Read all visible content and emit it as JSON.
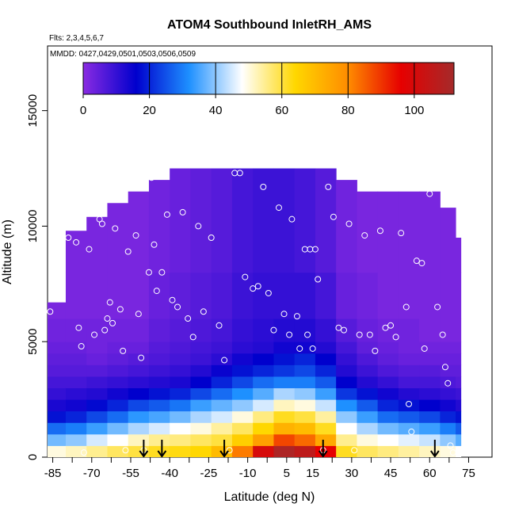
{
  "chart_data": {
    "type": "heatmap",
    "title": "ATOM4 Southbound InletRH_AMS",
    "flights_label": "Flts: 2,3,4,5,6,7",
    "dates_label": "MMDD: 0427,0429,0501,0503,0506,0509",
    "xlabel": "Latitude (deg N)",
    "ylabel": "Altitude (m)",
    "xlim": [
      -87,
      84
    ],
    "ylim": [
      0,
      17800
    ],
    "x_ticks": [
      -85,
      -70,
      -55,
      -40,
      -25,
      -10,
      5,
      15,
      30,
      45,
      60,
      75
    ],
    "x_tick_labels": [
      "-85",
      "-70",
      "-55",
      "-40",
      "-25",
      "-10",
      "5",
      "15",
      "30",
      "45",
      "60",
      "75"
    ],
    "y_ticks": [
      0,
      5000,
      10000,
      15000
    ],
    "y_tick_labels": [
      "0",
      "5000",
      "10000",
      "15000"
    ],
    "colorbar": {
      "range": [
        0,
        112
      ],
      "ticks": [
        0,
        20,
        40,
        60,
        80,
        100
      ],
      "tick_labels": [
        "0",
        "20",
        "40",
        "60",
        "80",
        "100"
      ],
      "colors": [
        "#8a2be2",
        "#0000cd",
        "#1e90ff",
        "#ffffff",
        "#ffd700",
        "#ff8c00",
        "#e60000",
        "#a52a2a"
      ]
    },
    "heatmap_columns": [
      {
        "x": -87,
        "top": 6700,
        "rh": [
          50,
          38,
          28,
          18,
          13,
          10,
          8,
          6,
          5,
          4,
          3,
          2,
          2
        ]
      },
      {
        "x": -80,
        "top": 9800,
        "rh": [
          52,
          40,
          30,
          20,
          14,
          11,
          8,
          6,
          5,
          4,
          3,
          2,
          2
        ]
      },
      {
        "x": -72,
        "top": 10400,
        "rh": [
          55,
          45,
          34,
          24,
          17,
          12,
          9,
          6,
          4,
          3,
          3,
          2,
          2
        ]
      },
      {
        "x": -64,
        "top": 11000,
        "rh": [
          58,
          48,
          38,
          28,
          20,
          14,
          10,
          7,
          5,
          4,
          3,
          2,
          2
        ]
      },
      {
        "x": -56,
        "top": 11500,
        "rh": [
          60,
          52,
          42,
          33,
          24,
          16,
          11,
          8,
          6,
          4,
          3,
          2,
          2
        ]
      },
      {
        "x": -48,
        "top": 12000,
        "rh": [
          62,
          55,
          45,
          35,
          26,
          18,
          12,
          9,
          7,
          6,
          5,
          4,
          3
        ]
      },
      {
        "x": -40,
        "top": 12500,
        "rh": [
          63,
          56,
          48,
          38,
          29,
          20,
          13,
          10,
          8,
          7,
          6,
          5,
          4
        ]
      },
      {
        "x": -32,
        "top": 12500,
        "rh": [
          64,
          58,
          50,
          42,
          34,
          24,
          16,
          12,
          9,
          8,
          7,
          6,
          5
        ]
      },
      {
        "x": -24,
        "top": 12500,
        "rh": [
          70,
          60,
          54,
          45,
          37,
          28,
          20,
          15,
          11,
          9,
          8,
          7,
          6
        ]
      },
      {
        "x": -16,
        "top": 12500,
        "rh": [
          82,
          66,
          58,
          50,
          40,
          32,
          24,
          18,
          14,
          11,
          10,
          9,
          8
        ]
      },
      {
        "x": -8,
        "top": 12500,
        "rh": [
          100,
          76,
          64,
          56,
          45,
          36,
          28,
          20,
          16,
          12,
          11,
          10,
          9
        ]
      },
      {
        "x": 0,
        "top": 12500,
        "rh": [
          110,
          88,
          72,
          62,
          52,
          42,
          30,
          22,
          18,
          14,
          12,
          10,
          9
        ]
      },
      {
        "x": 8,
        "top": 12500,
        "rh": [
          106,
          84,
          70,
          60,
          50,
          40,
          30,
          24,
          20,
          14,
          12,
          10,
          8
        ]
      },
      {
        "x": 16,
        "top": 12500,
        "rh": [
          96,
          74,
          62,
          54,
          44,
          34,
          26,
          20,
          16,
          12,
          10,
          8,
          6
        ]
      },
      {
        "x": 24,
        "top": 12000,
        "rh": [
          62,
          55,
          48,
          40,
          32,
          22,
          16,
          12,
          10,
          8,
          6,
          4,
          3
        ]
      },
      {
        "x": 32,
        "top": 11500,
        "rh": [
          58,
          50,
          42,
          34,
          26,
          18,
          12,
          9,
          7,
          5,
          4,
          3,
          2
        ]
      },
      {
        "x": 40,
        "top": 11500,
        "rh": [
          56,
          48,
          38,
          28,
          20,
          14,
          10,
          7,
          5,
          4,
          3,
          2,
          2
        ]
      },
      {
        "x": 48,
        "top": 11500,
        "rh": [
          54,
          46,
          36,
          26,
          18,
          12,
          8,
          6,
          4,
          3,
          3,
          2,
          2
        ]
      },
      {
        "x": 56,
        "top": 11500,
        "rh": [
          52,
          44,
          34,
          24,
          16,
          11,
          8,
          6,
          4,
          3,
          2,
          2,
          2
        ]
      },
      {
        "x": 64,
        "top": 10800,
        "rh": [
          50,
          40,
          30,
          20,
          14,
          10,
          7,
          5,
          4,
          3,
          2,
          2,
          2
        ]
      },
      {
        "x": 70,
        "top": 9500,
        "rh": [
          48,
          36,
          26,
          18,
          12,
          9,
          6,
          5,
          4,
          3,
          2,
          2,
          2
        ]
      }
    ],
    "altitude_bins": [
      0,
      500,
      1000,
      1500,
      2000,
      2500,
      3000,
      3500,
      4000,
      4500,
      5000,
      6000,
      8000,
      12500
    ],
    "sample_points": [
      {
        "x": -86,
        "y": 6300
      },
      {
        "x": -82,
        "y": 9500
      },
      {
        "x": -79,
        "y": 9500
      },
      {
        "x": -76,
        "y": 9300
      },
      {
        "x": -75,
        "y": 5600
      },
      {
        "x": -74,
        "y": 4800
      },
      {
        "x": -73,
        "y": 200
      },
      {
        "x": -71,
        "y": 9000
      },
      {
        "x": -69,
        "y": 5300
      },
      {
        "x": -68,
        "y": 10800
      },
      {
        "x": -67,
        "y": 10300
      },
      {
        "x": -66,
        "y": 10100
      },
      {
        "x": -65,
        "y": 5500
      },
      {
        "x": -64,
        "y": 6000
      },
      {
        "x": -63,
        "y": 6700
      },
      {
        "x": -62,
        "y": 5800
      },
      {
        "x": -61,
        "y": 9900
      },
      {
        "x": -60,
        "y": 11400
      },
      {
        "x": -59,
        "y": 6400
      },
      {
        "x": -58,
        "y": 4600
      },
      {
        "x": -57,
        "y": 300
      },
      {
        "x": -56,
        "y": 8900
      },
      {
        "x": -55,
        "y": 12000
      },
      {
        "x": -53,
        "y": 9600
      },
      {
        "x": -52,
        "y": 6200
      },
      {
        "x": -51,
        "y": 4300
      },
      {
        "x": -50,
        "y": 300
      },
      {
        "x": -48,
        "y": 8000
      },
      {
        "x": -47,
        "y": 12100
      },
      {
        "x": -46,
        "y": 9200
      },
      {
        "x": -45,
        "y": 7200
      },
      {
        "x": -43,
        "y": 8000
      },
      {
        "x": -41,
        "y": 10500
      },
      {
        "x": -39,
        "y": 6800
      },
      {
        "x": -37,
        "y": 6500
      },
      {
        "x": -35,
        "y": 10600
      },
      {
        "x": -33,
        "y": 6000
      },
      {
        "x": -31,
        "y": 5200
      },
      {
        "x": -29,
        "y": 10000
      },
      {
        "x": -27,
        "y": 6300
      },
      {
        "x": -24,
        "y": 9500
      },
      {
        "x": -21,
        "y": 5700
      },
      {
        "x": -19,
        "y": 4200
      },
      {
        "x": -17,
        "y": 300
      },
      {
        "x": -15,
        "y": 12300
      },
      {
        "x": -13,
        "y": 12300
      },
      {
        "x": -11,
        "y": 7800
      },
      {
        "x": -8,
        "y": 7300
      },
      {
        "x": -6,
        "y": 7400
      },
      {
        "x": -4,
        "y": 11700
      },
      {
        "x": -2,
        "y": 7100
      },
      {
        "x": 0,
        "y": 5500
      },
      {
        "x": 2,
        "y": 10800
      },
      {
        "x": 4,
        "y": 6200
      },
      {
        "x": 6,
        "y": 5300
      },
      {
        "x": 7,
        "y": 10300
      },
      {
        "x": 9,
        "y": 6100
      },
      {
        "x": 10,
        "y": 4700
      },
      {
        "x": 12,
        "y": 9000
      },
      {
        "x": 13,
        "y": 5300
      },
      {
        "x": 14,
        "y": 9000
      },
      {
        "x": 15,
        "y": 4700
      },
      {
        "x": 16,
        "y": 9000
      },
      {
        "x": 17,
        "y": 7700
      },
      {
        "x": 19,
        "y": 300
      },
      {
        "x": 21,
        "y": 11700
      },
      {
        "x": 23,
        "y": 10400
      },
      {
        "x": 25,
        "y": 5600
      },
      {
        "x": 27,
        "y": 5500
      },
      {
        "x": 29,
        "y": 10100
      },
      {
        "x": 31,
        "y": 300
      },
      {
        "x": 33,
        "y": 5300
      },
      {
        "x": 35,
        "y": 9600
      },
      {
        "x": 37,
        "y": 5300
      },
      {
        "x": 39,
        "y": 4600
      },
      {
        "x": 41,
        "y": 9800
      },
      {
        "x": 43,
        "y": 5600
      },
      {
        "x": 45,
        "y": 5700
      },
      {
        "x": 47,
        "y": 5200
      },
      {
        "x": 49,
        "y": 9700
      },
      {
        "x": 51,
        "y": 6500
      },
      {
        "x": 52,
        "y": 2300
      },
      {
        "x": 53,
        "y": 1100
      },
      {
        "x": 55,
        "y": 8500
      },
      {
        "x": 57,
        "y": 8400
      },
      {
        "x": 58,
        "y": 4700
      },
      {
        "x": 60,
        "y": 11400
      },
      {
        "x": 63,
        "y": 6500
      },
      {
        "x": 65,
        "y": 5300
      },
      {
        "x": 66,
        "y": 3900
      },
      {
        "x": 67,
        "y": 3200
      },
      {
        "x": 68,
        "y": 500
      },
      {
        "x": 69,
        "y": 200
      }
    ],
    "arrows_x": [
      -50,
      -43,
      -19,
      19,
      62
    ]
  }
}
